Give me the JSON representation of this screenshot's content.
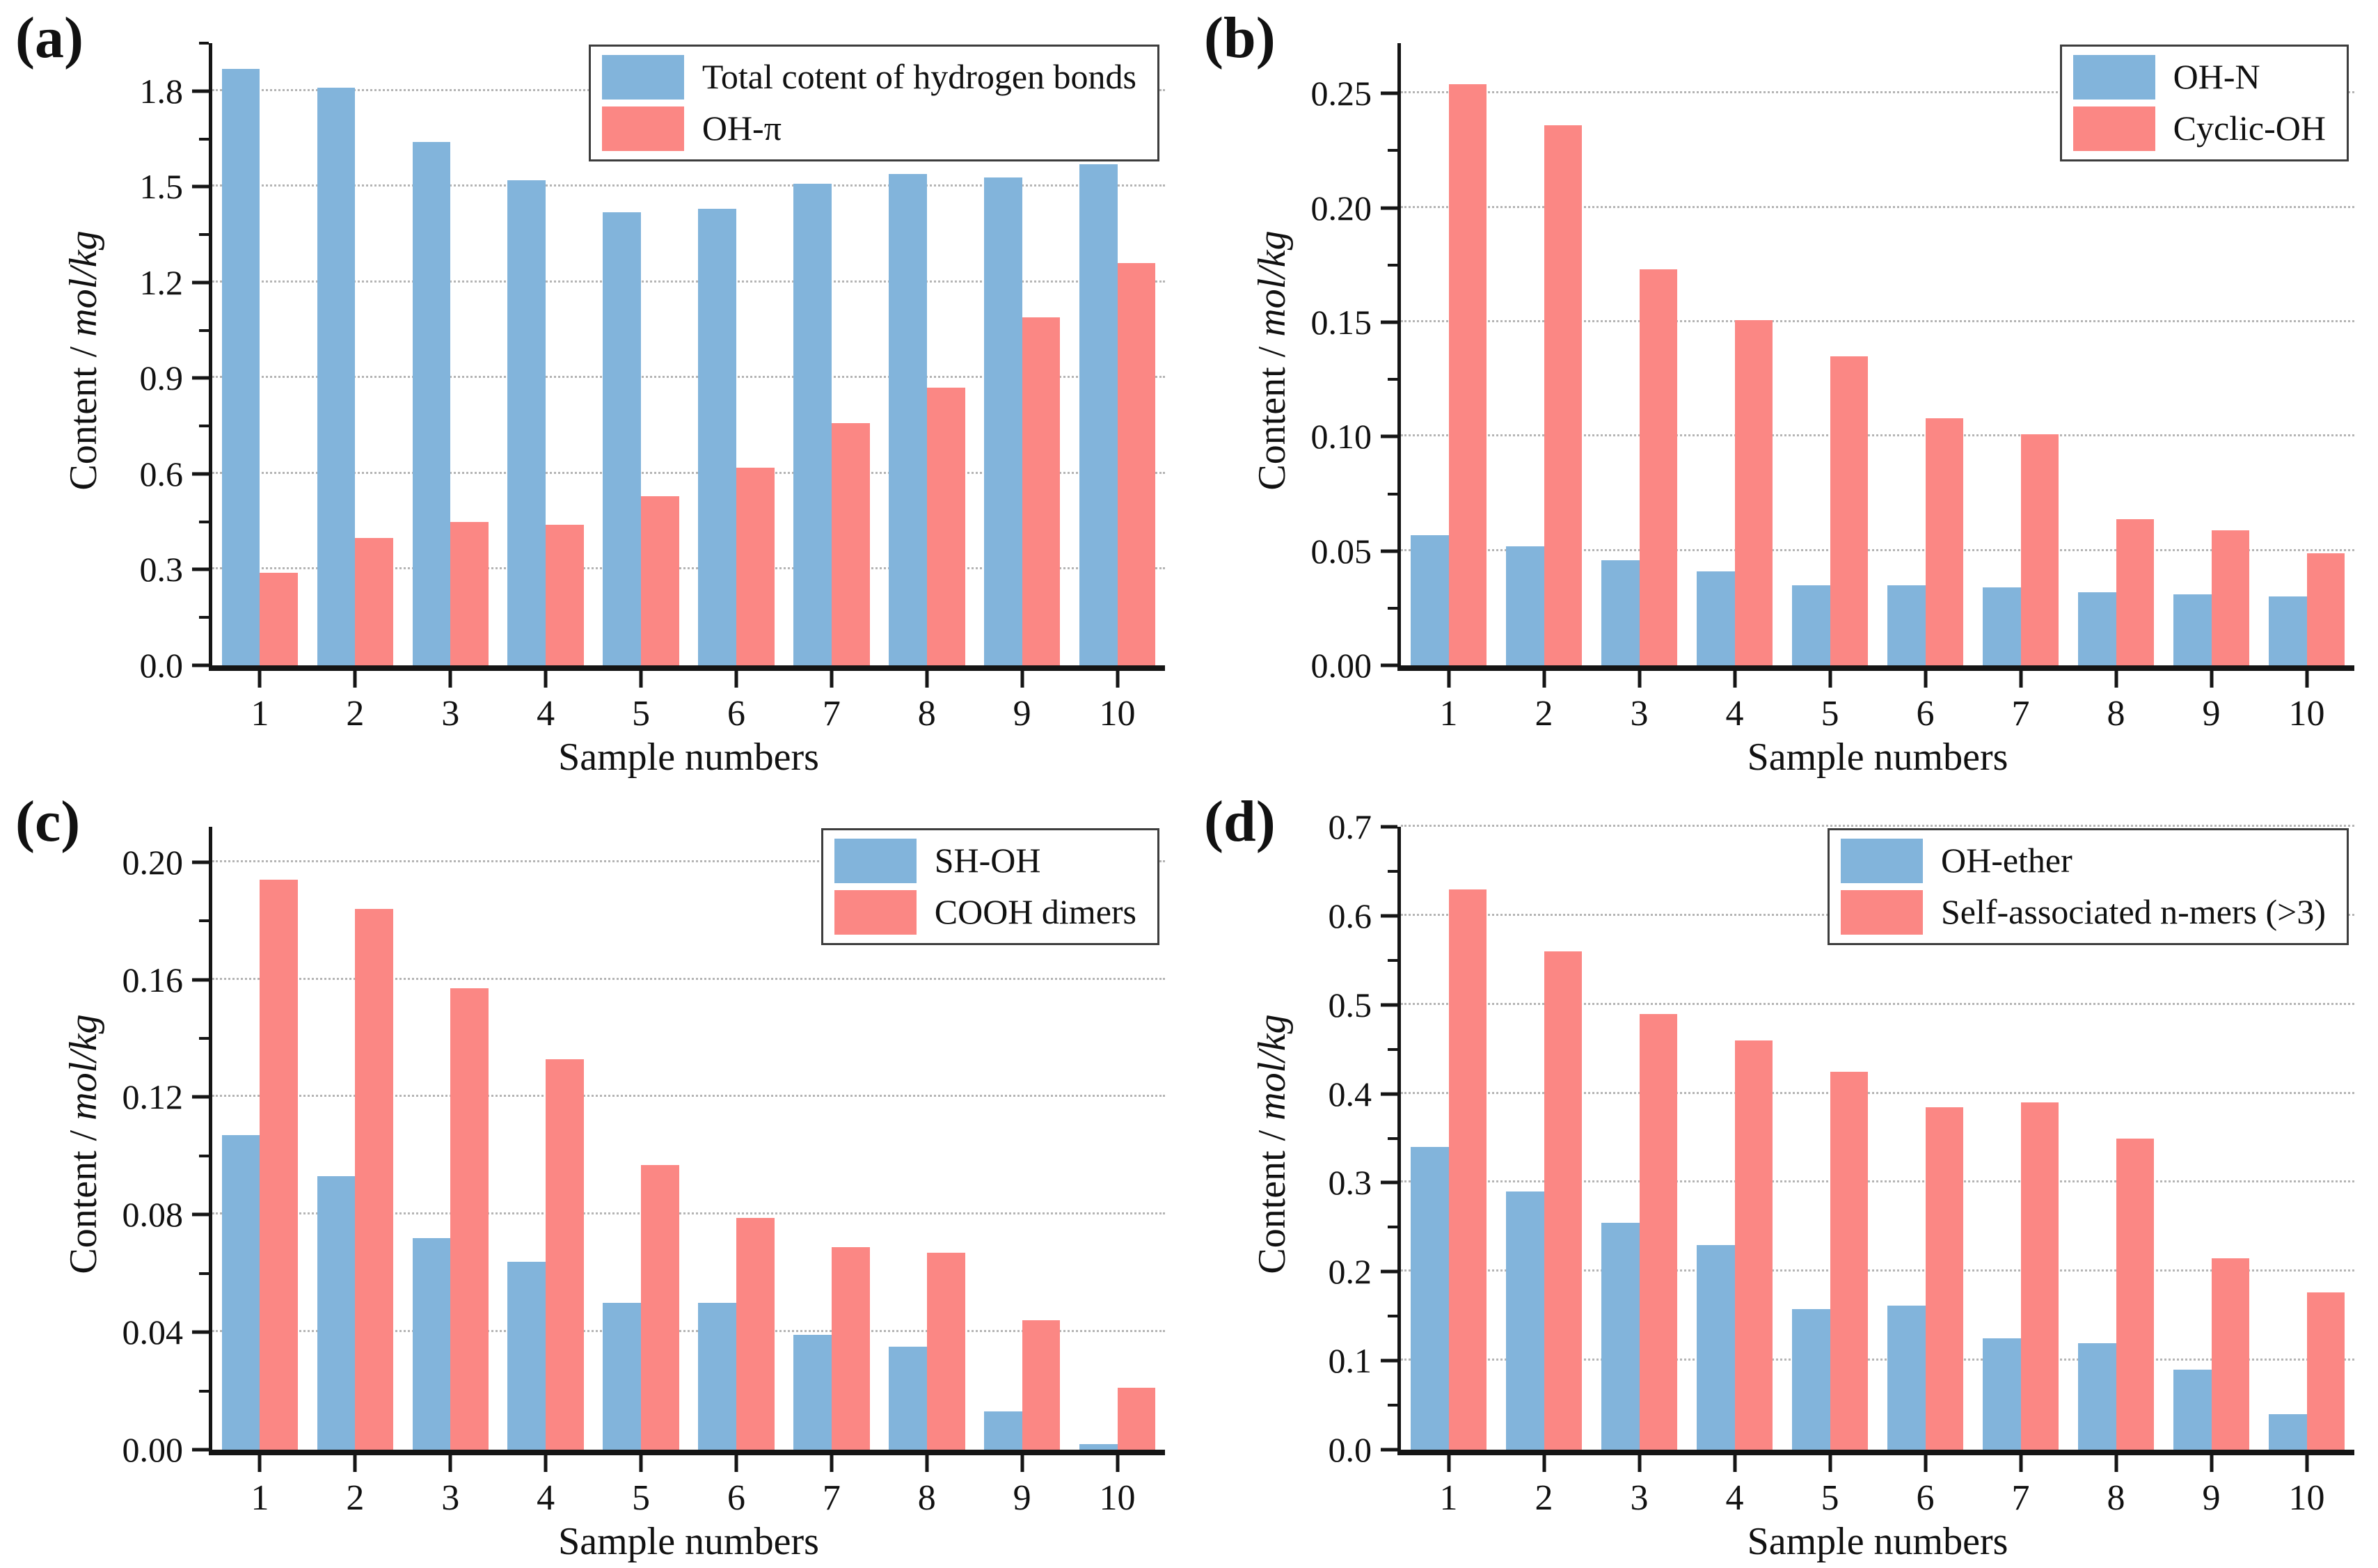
{
  "colors": {
    "blue": "#82b4db",
    "red": "#fb8784",
    "axis": "#151515",
    "grid": "#b4b4b4",
    "legend_border": "#3d3d3d",
    "background": "#ffffff"
  },
  "chart_data": [
    {
      "type": "bar",
      "panel_label": "(a)",
      "title": "",
      "xlabel": "Sample numbers",
      "ylabel": "Content / mol/kg",
      "ylabel_regular": "Content / ",
      "ylabel_italic": "mol/kg",
      "categories": [
        "1",
        "2",
        "3",
        "4",
        "5",
        "6",
        "7",
        "8",
        "9",
        "10"
      ],
      "series": [
        {
          "name": "Total cotent of hydrogen bonds",
          "color_key": "blue",
          "values": [
            1.87,
            1.81,
            1.64,
            1.52,
            1.42,
            1.43,
            1.51,
            1.54,
            1.53,
            1.57
          ]
        },
        {
          "name": "OH-π",
          "color_key": "red",
          "values": [
            0.29,
            0.4,
            0.45,
            0.44,
            0.53,
            0.62,
            0.76,
            0.87,
            1.09,
            1.26
          ]
        }
      ],
      "ylim": [
        0,
        1.95
      ],
      "yticks": [
        0.0,
        0.3,
        0.6,
        0.9,
        1.2,
        1.5,
        1.8
      ],
      "ytick_labels": [
        "0.0",
        "0.3",
        "0.6",
        "0.9",
        "1.2",
        "1.5",
        "1.8"
      ],
      "grid": "horizontal-dotted",
      "legend_position": "top-right"
    },
    {
      "type": "bar",
      "panel_label": "(b)",
      "title": "",
      "xlabel": "Sample numbers",
      "ylabel": "Content / mol/kg",
      "ylabel_regular": "Content / ",
      "ylabel_italic": "mol/kg",
      "categories": [
        "1",
        "2",
        "3",
        "4",
        "5",
        "6",
        "7",
        "8",
        "9",
        "10"
      ],
      "series": [
        {
          "name": "OH-N",
          "color_key": "blue",
          "values": [
            0.057,
            0.052,
            0.046,
            0.041,
            0.035,
            0.035,
            0.034,
            0.032,
            0.031,
            0.03
          ]
        },
        {
          "name": "Cyclic-OH",
          "color_key": "red",
          "values": [
            0.254,
            0.236,
            0.173,
            0.151,
            0.135,
            0.108,
            0.101,
            0.064,
            0.059,
            0.049
          ]
        }
      ],
      "ylim": [
        0,
        0.272
      ],
      "yticks": [
        0.0,
        0.05,
        0.1,
        0.15,
        0.2,
        0.25
      ],
      "ytick_labels": [
        "0.00",
        "0.05",
        "0.10",
        "0.15",
        "0.20",
        "0.25"
      ],
      "grid": "horizontal-dotted",
      "legend_position": "top-right"
    },
    {
      "type": "bar",
      "panel_label": "(c)",
      "title": "",
      "xlabel": "Sample numbers",
      "ylabel": "Content / mol/kg",
      "ylabel_regular": "Content / ",
      "ylabel_italic": "mol/kg",
      "categories": [
        "1",
        "2",
        "3",
        "4",
        "5",
        "6",
        "7",
        "8",
        "9",
        "10"
      ],
      "series": [
        {
          "name": "SH-OH",
          "color_key": "blue",
          "values": [
            0.107,
            0.093,
            0.072,
            0.064,
            0.05,
            0.05,
            0.039,
            0.035,
            0.013,
            0.002
          ]
        },
        {
          "name": "COOH dimers",
          "color_key": "red",
          "values": [
            0.194,
            0.184,
            0.157,
            0.133,
            0.097,
            0.079,
            0.069,
            0.067,
            0.044,
            0.021
          ]
        }
      ],
      "ylim": [
        0,
        0.212
      ],
      "yticks": [
        0.0,
        0.04,
        0.08,
        0.12,
        0.16,
        0.2
      ],
      "ytick_labels": [
        "0.00",
        "0.04",
        "0.08",
        "0.12",
        "0.16",
        "0.20"
      ],
      "grid": "horizontal-dotted",
      "legend_position": "top-right"
    },
    {
      "type": "bar",
      "panel_label": "(d)",
      "title": "",
      "xlabel": "Sample numbers",
      "ylabel": "Content / mol/kg",
      "ylabel_regular": "Content / ",
      "ylabel_italic": "mol/kg",
      "categories": [
        "1",
        "2",
        "3",
        "4",
        "5",
        "6",
        "7",
        "8",
        "9",
        "10"
      ],
      "series": [
        {
          "name": "OH-ether",
          "color_key": "blue",
          "values": [
            0.34,
            0.29,
            0.255,
            0.23,
            0.158,
            0.162,
            0.125,
            0.12,
            0.09,
            0.04
          ]
        },
        {
          "name": "Self-associated n-mers (>3)",
          "color_key": "red",
          "values": [
            0.63,
            0.56,
            0.49,
            0.46,
            0.425,
            0.385,
            0.39,
            0.35,
            0.215,
            0.177
          ]
        }
      ],
      "ylim": [
        0,
        0.7
      ],
      "yticks": [
        0.0,
        0.1,
        0.2,
        0.3,
        0.4,
        0.5,
        0.6,
        0.7
      ],
      "ytick_labels": [
        "0.0",
        "0.1",
        "0.2",
        "0.3",
        "0.4",
        "0.5",
        "0.6",
        "0.7"
      ],
      "grid": "horizontal-dotted",
      "legend_position": "top-right"
    }
  ]
}
